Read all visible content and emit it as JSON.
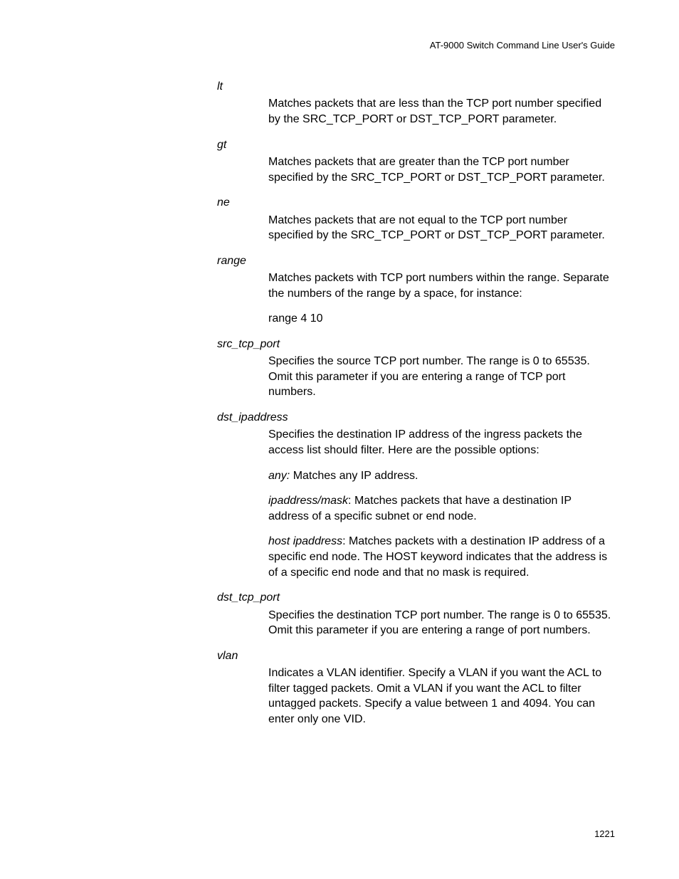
{
  "header": "AT-9000 Switch Command Line User's Guide",
  "page_number": "1221",
  "entries": [
    {
      "term": "lt",
      "descs": [
        {
          "text": "Matches packets that are less than the TCP port number specified by the SRC_TCP_PORT or DST_TCP_PORT parameter."
        }
      ]
    },
    {
      "term": "gt",
      "descs": [
        {
          "text": "Matches packets that are greater than the TCP port number specified by the SRC_TCP_PORT or DST_TCP_PORT parameter."
        }
      ]
    },
    {
      "term": "ne",
      "descs": [
        {
          "text": "Matches packets that are not equal to the TCP port number specified by the SRC_TCP_PORT or DST_TCP_PORT parameter."
        }
      ]
    },
    {
      "term": "range",
      "descs": [
        {
          "text": "Matches packets with TCP port numbers within the range. Separate the numbers of the range by a space, for instance:"
        },
        {
          "text": "range 4 10"
        }
      ]
    },
    {
      "term": "src_tcp_port",
      "descs": [
        {
          "text": "Specifies the source TCP port number. The range is 0 to 65535. Omit this parameter if you are entering a range of TCP port numbers."
        }
      ]
    },
    {
      "term": "dst_ipaddress",
      "descs": [
        {
          "text": "Specifies the destination IP address of the ingress packets the access list should filter. Here are the possible options:"
        },
        {
          "prefix": "any:",
          "text": " Matches any IP address."
        },
        {
          "prefix": "ipaddress/mask",
          "text": ": Matches packets that have a destination IP address of a specific subnet or end node."
        },
        {
          "prefix": "host ipaddress",
          "text": ": Matches packets with a destination IP address of a specific end node. The HOST keyword indicates that the address is of a specific end node and that no mask is required."
        }
      ]
    },
    {
      "term": "dst_tcp_port",
      "descs": [
        {
          "text": "Specifies the destination TCP port number. The range is 0 to 65535. Omit this parameter if you are entering a range of port numbers."
        }
      ]
    },
    {
      "term": "vlan",
      "descs": [
        {
          "text": "Indicates a VLAN identifier. Specify a VLAN if you want the ACL to filter tagged packets. Omit a VLAN if you want the ACL to filter untagged packets. Specify a value between 1 and 4094. You can enter only one VID."
        }
      ]
    }
  ]
}
